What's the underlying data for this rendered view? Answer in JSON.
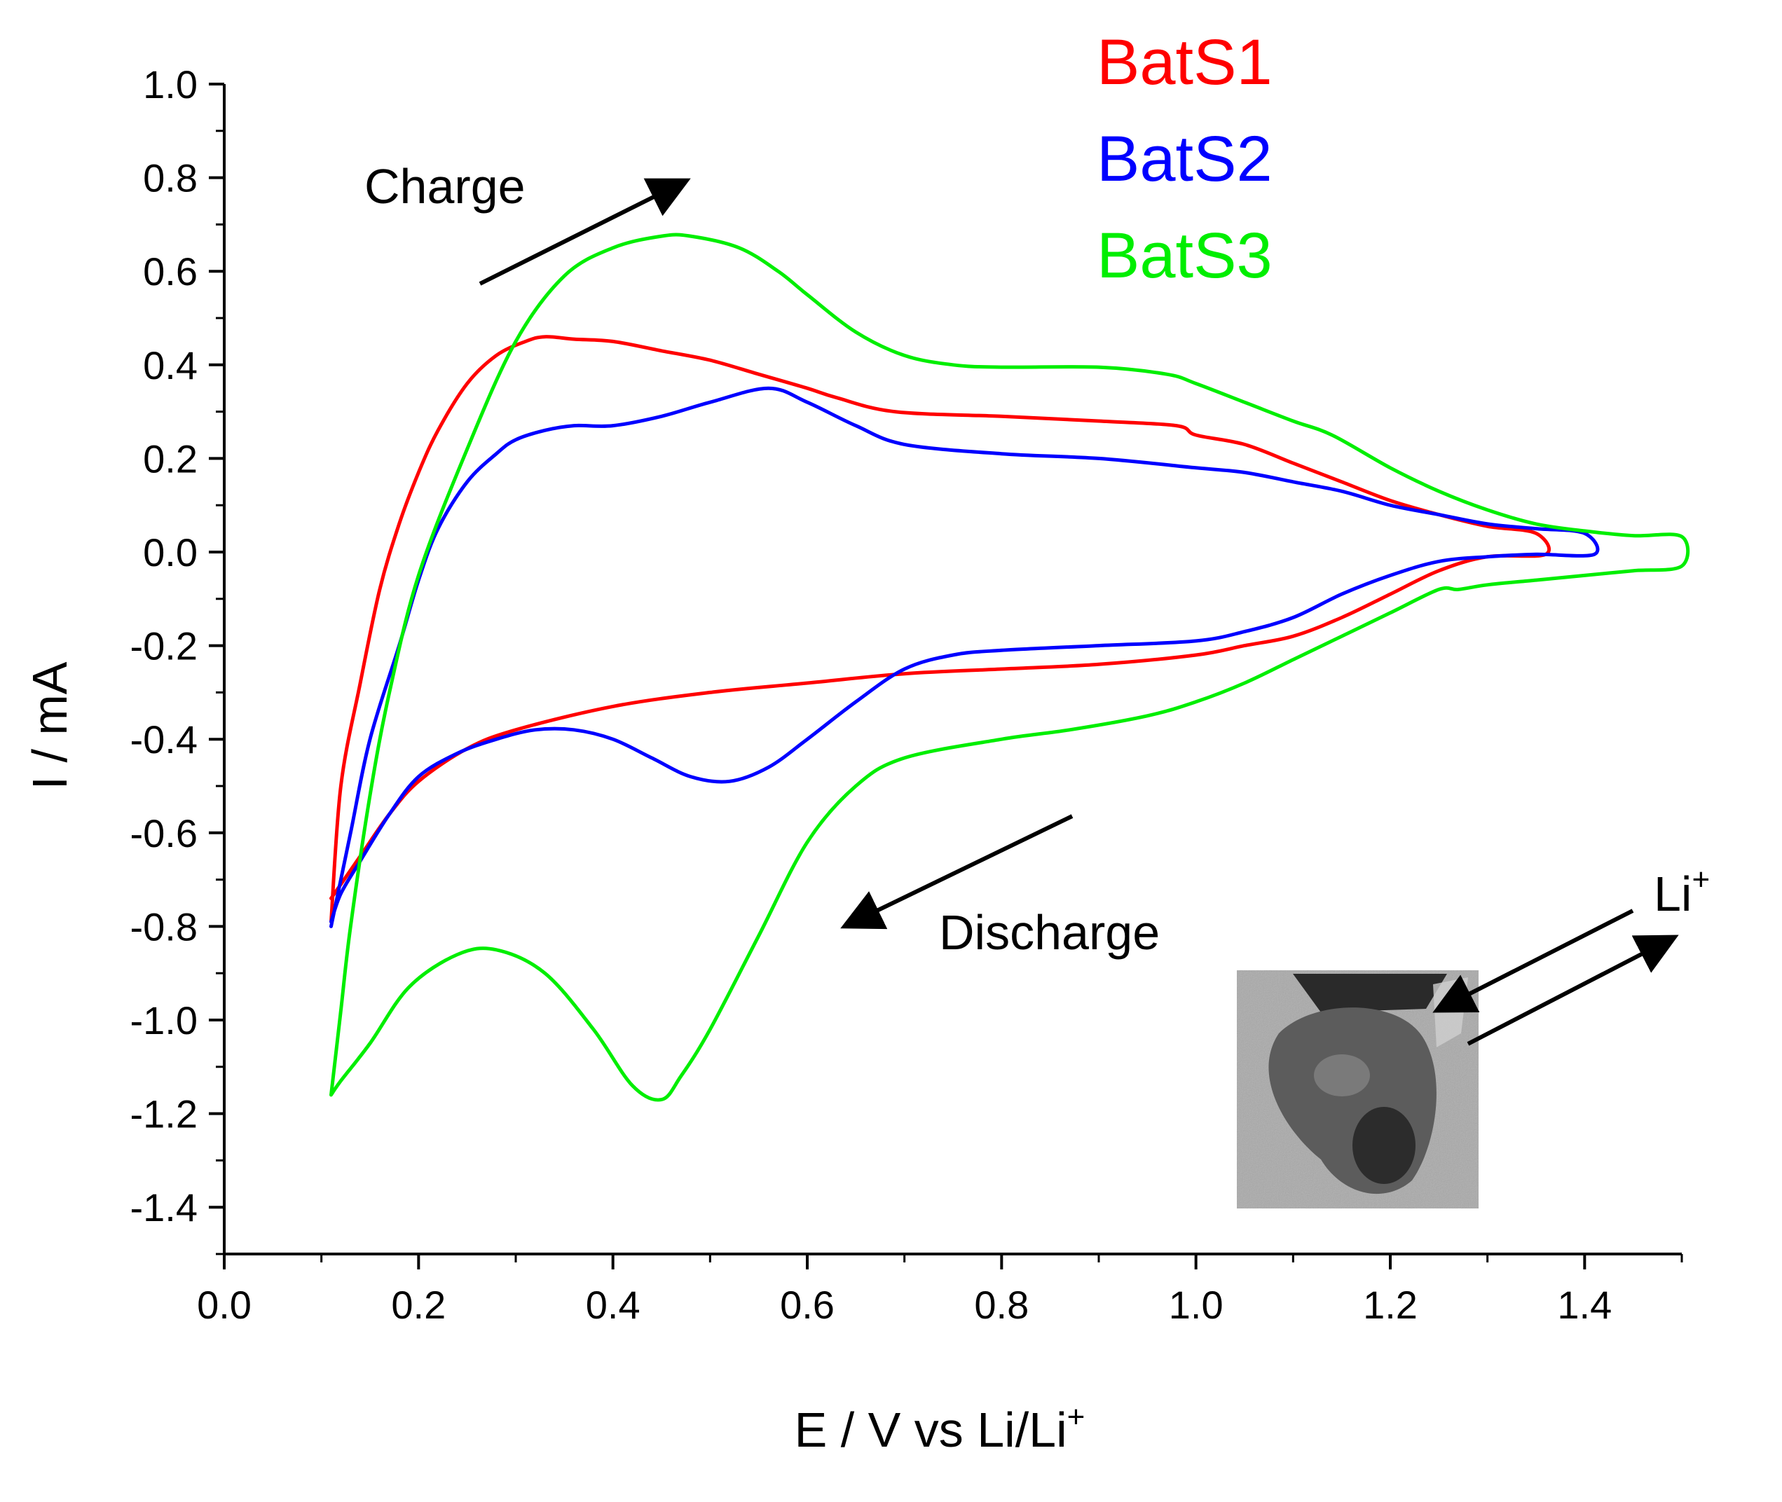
{
  "chart_data": {
    "type": "line",
    "title": "",
    "xlabel": "E / V vs Li/Li",
    "xlabel_sup": "+",
    "ylabel": "I / mA",
    "xlim": [
      0.0,
      1.5
    ],
    "ylim": [
      -1.5,
      1.0
    ],
    "x_ticks": [
      0.0,
      0.2,
      0.4,
      0.6,
      0.8,
      1.0,
      1.2,
      1.4
    ],
    "x_tick_labels": [
      "0.0",
      "0.2",
      "0.4",
      "0.6",
      "0.8",
      "1.0",
      "1.2",
      "1.4"
    ],
    "y_ticks": [
      1.0,
      0.8,
      0.6,
      0.4,
      0.2,
      0.0,
      -0.2,
      -0.4,
      -0.6,
      -0.8,
      -1.0,
      -1.2,
      -1.4
    ],
    "y_tick_labels": [
      "1.0",
      "0.8",
      "0.6",
      "0.4",
      "0.2",
      "0.0",
      "-0.2",
      "-0.4",
      "-0.6",
      "-0.8",
      "-1.0",
      "-1.2",
      "-1.4"
    ],
    "grid": false,
    "legend_position": "top-right",
    "annotations": {
      "charge": "Charge",
      "discharge": "Discharge",
      "li": "Li",
      "li_sup": "+"
    },
    "inset": "grayscale micrograph of a particle (bottom-right)",
    "series": [
      {
        "name": "BatS1",
        "color": "#ff0000",
        "x": [
          0.11,
          0.12,
          0.14,
          0.16,
          0.18,
          0.2,
          0.22,
          0.25,
          0.28,
          0.31,
          0.33,
          0.36,
          0.4,
          0.45,
          0.5,
          0.55,
          0.6,
          0.63,
          0.69,
          0.8,
          0.9,
          0.98,
          1.0,
          1.05,
          1.1,
          1.15,
          1.2,
          1.25,
          1.3,
          1.35,
          1.36,
          1.3,
          1.25,
          1.2,
          1.15,
          1.1,
          1.05,
          1.0,
          0.9,
          0.8,
          0.7,
          0.6,
          0.5,
          0.4,
          0.3,
          0.25,
          0.2,
          0.17,
          0.14,
          0.12,
          0.11
        ],
        "y": [
          -0.79,
          -0.5,
          -0.28,
          -0.08,
          0.06,
          0.17,
          0.26,
          0.36,
          0.42,
          0.45,
          0.46,
          0.455,
          0.45,
          0.43,
          0.41,
          0.38,
          0.35,
          0.33,
          0.3,
          0.29,
          0.28,
          0.27,
          0.25,
          0.23,
          0.19,
          0.15,
          0.11,
          0.08,
          0.055,
          0.04,
          -0.005,
          -0.01,
          -0.04,
          -0.09,
          -0.14,
          -0.18,
          -0.2,
          -0.22,
          -0.24,
          -0.25,
          -0.26,
          -0.28,
          -0.3,
          -0.33,
          -0.38,
          -0.42,
          -0.49,
          -0.56,
          -0.65,
          -0.71,
          -0.74
        ]
      },
      {
        "name": "BatS2",
        "color": "#0000ff",
        "x": [
          0.11,
          0.13,
          0.15,
          0.18,
          0.2,
          0.22,
          0.25,
          0.28,
          0.3,
          0.33,
          0.36,
          0.4,
          0.45,
          0.5,
          0.56,
          0.6,
          0.65,
          0.7,
          0.8,
          0.9,
          1.0,
          1.05,
          1.1,
          1.15,
          1.2,
          1.25,
          1.3,
          1.35,
          1.4,
          1.41,
          1.35,
          1.3,
          1.25,
          1.2,
          1.15,
          1.1,
          1.05,
          1.0,
          0.9,
          0.8,
          0.75,
          0.7,
          0.65,
          0.6,
          0.56,
          0.52,
          0.48,
          0.44,
          0.4,
          0.36,
          0.32,
          0.28,
          0.24,
          0.2,
          0.17,
          0.14,
          0.12,
          0.11
        ],
        "y": [
          -0.8,
          -0.6,
          -0.4,
          -0.2,
          -0.06,
          0.05,
          0.15,
          0.21,
          0.24,
          0.26,
          0.27,
          0.27,
          0.29,
          0.32,
          0.35,
          0.32,
          0.27,
          0.23,
          0.21,
          0.2,
          0.18,
          0.17,
          0.15,
          0.13,
          0.1,
          0.08,
          0.06,
          0.05,
          0.04,
          -0.005,
          -0.005,
          -0.01,
          -0.02,
          -0.05,
          -0.09,
          -0.14,
          -0.17,
          -0.19,
          -0.2,
          -0.21,
          -0.22,
          -0.25,
          -0.32,
          -0.4,
          -0.46,
          -0.49,
          -0.48,
          -0.44,
          -0.4,
          -0.38,
          -0.38,
          -0.4,
          -0.43,
          -0.48,
          -0.56,
          -0.66,
          -0.73,
          -0.79
        ]
      },
      {
        "name": "BatS3",
        "color": "#00ee00",
        "x": [
          0.11,
          0.12,
          0.13,
          0.15,
          0.17,
          0.2,
          0.25,
          0.3,
          0.35,
          0.4,
          0.45,
          0.48,
          0.53,
          0.57,
          0.6,
          0.65,
          0.7,
          0.75,
          0.8,
          0.9,
          0.97,
          1.0,
          1.05,
          1.1,
          1.14,
          1.2,
          1.25,
          1.3,
          1.35,
          1.4,
          1.45,
          1.5,
          1.5,
          1.45,
          1.4,
          1.35,
          1.3,
          1.27,
          1.25,
          1.2,
          1.15,
          1.1,
          1.05,
          1.0,
          0.95,
          0.87,
          0.8,
          0.7,
          0.65,
          0.6,
          0.55,
          0.5,
          0.47,
          0.45,
          0.42,
          0.38,
          0.33,
          0.28,
          0.24,
          0.19,
          0.15,
          0.12,
          0.11
        ],
        "y": [
          -1.16,
          -0.98,
          -0.8,
          -0.52,
          -0.3,
          -0.05,
          0.22,
          0.45,
          0.59,
          0.65,
          0.675,
          0.675,
          0.65,
          0.6,
          0.55,
          0.47,
          0.42,
          0.4,
          0.395,
          0.395,
          0.38,
          0.36,
          0.32,
          0.28,
          0.25,
          0.18,
          0.13,
          0.09,
          0.06,
          0.045,
          0.035,
          0.033,
          -0.03,
          -0.04,
          -0.05,
          -0.06,
          -0.07,
          -0.08,
          -0.08,
          -0.13,
          -0.18,
          -0.23,
          -0.28,
          -0.32,
          -0.35,
          -0.38,
          -0.4,
          -0.44,
          -0.5,
          -0.62,
          -0.82,
          -1.02,
          -1.12,
          -1.17,
          -1.14,
          -1.02,
          -0.9,
          -0.85,
          -0.86,
          -0.93,
          -1.05,
          -1.13,
          -1.16
        ]
      }
    ]
  }
}
